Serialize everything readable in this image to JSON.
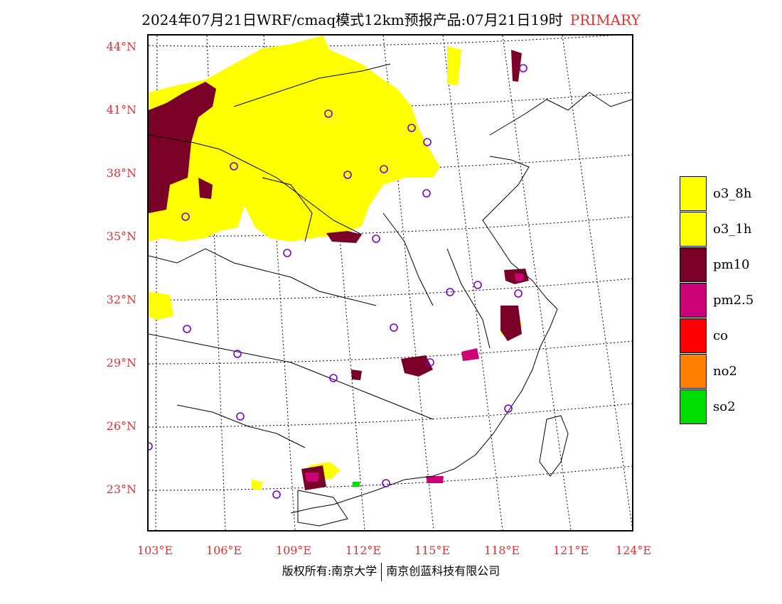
{
  "header": {
    "title": "2024年07月21日WRF/cmaq模式12km预报产品:07月21日19时",
    "tag": "PRIMARY"
  },
  "axes": {
    "lat_labels": [
      "44°N",
      "41°N",
      "38°N",
      "35°N",
      "32°N",
      "29°N",
      "26°N",
      "23°N"
    ],
    "lon_labels": [
      "103°E",
      "106°E",
      "109°E",
      "112°E",
      "115°E",
      "118°E",
      "121°E",
      "124°E"
    ]
  },
  "legend": [
    {
      "label": "o3_8h",
      "color": "#ffff00"
    },
    {
      "label": "o3_1h",
      "color": "#ffff00"
    },
    {
      "label": "pm10",
      "color": "#7a0028"
    },
    {
      "label": "pm2.5",
      "color": "#cc0077"
    },
    {
      "label": "co",
      "color": "#ff0000"
    },
    {
      "label": "no2",
      "color": "#ff7f00"
    },
    {
      "label": "so2",
      "color": "#00dd00"
    }
  ],
  "footer": {
    "left": "版权所有:南京大学",
    "right": "南京创蓝科技有限公司"
  }
}
